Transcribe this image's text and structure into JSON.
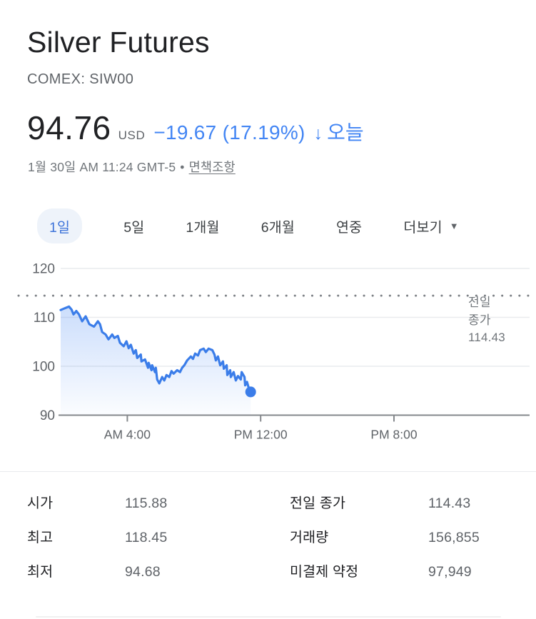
{
  "header": {
    "title": "Silver Futures",
    "exchange_symbol": "COMEX: SIW00"
  },
  "quote": {
    "price": "94.76",
    "currency": "USD",
    "change": "−19.67 (17.19%)",
    "direction_arrow": "↓",
    "period_label": "오늘",
    "timestamp": "1월 30일 AM 11:24 GMT-5",
    "bullet": "•",
    "disclaimer_link": "면책조항",
    "down_color": "#4285f4"
  },
  "tabs": {
    "items": [
      {
        "label": "1일",
        "selected": true
      },
      {
        "label": "5일",
        "selected": false
      },
      {
        "label": "1개월",
        "selected": false
      },
      {
        "label": "6개월",
        "selected": false
      },
      {
        "label": "연중",
        "selected": false
      },
      {
        "label": "더보기",
        "selected": false,
        "arrow": "▼"
      }
    ]
  },
  "chart_data": {
    "type": "area",
    "title": "Silver Futures intraday price (1일)",
    "xlabel": "",
    "ylabel": "",
    "grid": true,
    "ylim": [
      90,
      120
    ],
    "y_ticks": [
      90,
      100,
      110,
      120
    ],
    "xlim_hours": [
      0,
      28.1
    ],
    "x_ticks": [
      {
        "hour": 4,
        "label": "AM 4:00"
      },
      {
        "hour": 12,
        "label": "PM 12:00"
      },
      {
        "hour": 20,
        "label": "PM 8:00"
      }
    ],
    "previous_close": {
      "label_line1": "전일",
      "label_line2": "종가",
      "display": "114.43",
      "value": 114.43
    },
    "line_color": "#3b7de9",
    "fill_color": "#4285f4",
    "axis_color": "#85888c",
    "grid_color": "#e9ebee",
    "tick_label_color": "#5f6368",
    "points": [
      [
        0,
        111.5
      ],
      [
        0.2,
        111.8
      ],
      [
        0.5,
        112.2
      ],
      [
        0.65,
        111.6
      ],
      [
        0.77,
        110.6
      ],
      [
        0.94,
        111.3
      ],
      [
        1.1,
        110.6
      ],
      [
        1.29,
        109.2
      ],
      [
        1.5,
        110.2
      ],
      [
        1.72,
        108.6
      ],
      [
        2.0,
        108.1
      ],
      [
        2.23,
        109.2
      ],
      [
        2.36,
        108.6
      ],
      [
        2.49,
        107.0
      ],
      [
        2.7,
        106.5
      ],
      [
        2.87,
        105.5
      ],
      [
        3.09,
        106.5
      ],
      [
        3.22,
        105.8
      ],
      [
        3.43,
        106.2
      ],
      [
        3.56,
        104.8
      ],
      [
        3.78,
        104.1
      ],
      [
        3.95,
        105.1
      ],
      [
        4.08,
        103.7
      ],
      [
        4.21,
        104.4
      ],
      [
        4.38,
        102.6
      ],
      [
        4.51,
        103.3
      ],
      [
        4.59,
        101.7
      ],
      [
        4.81,
        102.4
      ],
      [
        4.85,
        101.0
      ],
      [
        5.06,
        101.4
      ],
      [
        5.24,
        99.7
      ],
      [
        5.28,
        100.7
      ],
      [
        5.45,
        99.2
      ],
      [
        5.49,
        100.2
      ],
      [
        5.66,
        98.8
      ],
      [
        5.71,
        99.7
      ],
      [
        5.79,
        97.3
      ],
      [
        5.92,
        96.5
      ],
      [
        6.09,
        97.8
      ],
      [
        6.22,
        97.1
      ],
      [
        6.35,
        98.2
      ],
      [
        6.52,
        97.8
      ],
      [
        6.65,
        99.0
      ],
      [
        6.78,
        98.5
      ],
      [
        6.99,
        99.2
      ],
      [
        7.16,
        98.8
      ],
      [
        7.29,
        99.7
      ],
      [
        7.42,
        100.2
      ],
      [
        7.59,
        101.2
      ],
      [
        7.81,
        102.0
      ],
      [
        7.94,
        101.5
      ],
      [
        8.07,
        102.6
      ],
      [
        8.24,
        102.2
      ],
      [
        8.37,
        103.3
      ],
      [
        8.58,
        103.6
      ],
      [
        8.71,
        102.9
      ],
      [
        8.88,
        103.6
      ],
      [
        9.1,
        103.3
      ],
      [
        9.23,
        102.4
      ],
      [
        9.31,
        101.2
      ],
      [
        9.44,
        102.0
      ],
      [
        9.57,
        100.2
      ],
      [
        9.74,
        101.0
      ],
      [
        9.79,
        99.5
      ],
      [
        9.96,
        100.2
      ],
      [
        10.0,
        98.2
      ],
      [
        10.17,
        99.2
      ],
      [
        10.21,
        97.8
      ],
      [
        10.38,
        98.8
      ],
      [
        10.51,
        97.1
      ],
      [
        10.64,
        98.0
      ],
      [
        10.81,
        97.3
      ],
      [
        10.86,
        98.8
      ],
      [
        11.03,
        97.8
      ],
      [
        11.07,
        96.1
      ],
      [
        11.18,
        96.8
      ],
      [
        11.28,
        95.6
      ],
      [
        11.4,
        94.76
      ]
    ]
  },
  "stats": {
    "left": [
      {
        "label": "시가",
        "value": "115.88"
      },
      {
        "label": "최고",
        "value": "118.45"
      },
      {
        "label": "최저",
        "value": "94.68"
      }
    ],
    "right": [
      {
        "label": "전일 종가",
        "value": "114.43"
      },
      {
        "label": "거래량",
        "value": "156,855"
      },
      {
        "label": "미결제 약정",
        "value": "97,949"
      }
    ]
  }
}
